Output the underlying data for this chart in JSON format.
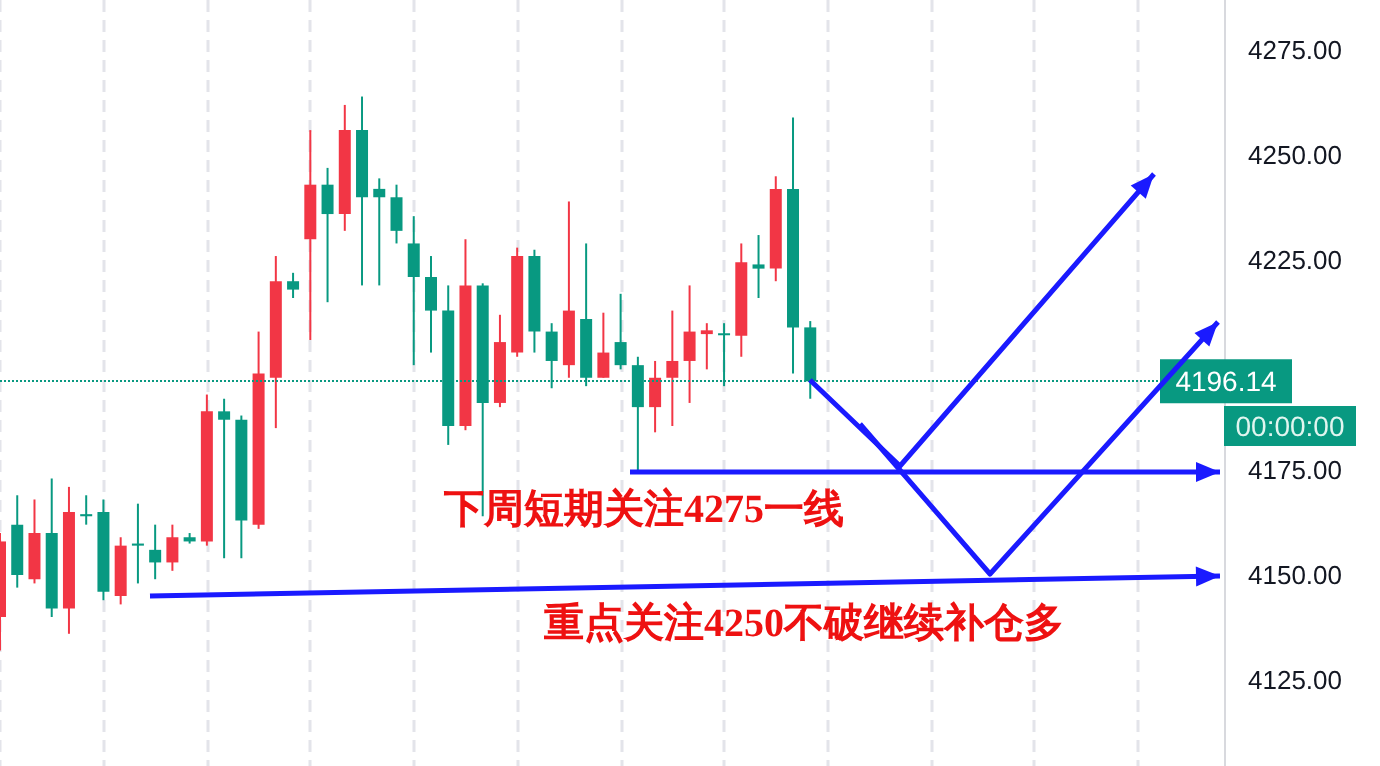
{
  "chart_data": {
    "type": "candlestick",
    "categories": [
      null,
      null,
      null,
      null,
      null,
      null,
      null,
      null,
      null,
      null,
      null,
      null,
      null,
      null,
      null,
      null,
      null,
      null,
      null,
      null,
      null,
      null,
      null,
      null,
      null,
      null,
      null,
      null,
      null,
      null,
      null,
      null,
      null,
      null,
      null,
      null,
      null,
      null,
      null,
      null,
      null,
      null,
      null,
      null,
      null,
      null,
      null,
      null,
      null,
      null,
      null,
      null,
      null,
      null,
      null,
      null,
      null,
      null,
      null,
      null,
      null,
      null,
      null,
      null,
      null,
      null,
      null,
      null,
      null,
      null,
      null,
      null
    ],
    "ohlc": [
      [
        4140,
        4160,
        4132,
        4158
      ],
      [
        4162,
        4169,
        4147,
        4150
      ],
      [
        4149,
        4168,
        4148,
        4160
      ],
      [
        4160,
        4173,
        4140,
        4142
      ],
      [
        4142,
        4171,
        4136,
        4165
      ],
      [
        4164.5,
        4169,
        4162,
        4164
      ],
      [
        4165,
        4168,
        4144,
        4146
      ],
      [
        4145,
        4159,
        4143,
        4157
      ],
      [
        4157.5,
        4167,
        4148,
        4157
      ],
      [
        4156,
        4162,
        4149,
        4153
      ],
      [
        4153,
        4162,
        4151,
        4159
      ],
      [
        4159,
        4160,
        4157.5,
        4158
      ],
      [
        4158,
        4193,
        4157,
        4189
      ],
      [
        4189,
        4192,
        4154,
        4187
      ],
      [
        4187,
        4188,
        4154,
        4163
      ],
      [
        4162,
        4208,
        4161,
        4198
      ],
      [
        4197,
        4226,
        4185,
        4220
      ],
      [
        4220,
        4222,
        4216,
        4218
      ],
      [
        4230,
        4256,
        4206,
        4243
      ],
      [
        4243,
        4247,
        4215,
        4236
      ],
      [
        4236,
        4262,
        4232,
        4256
      ],
      [
        4256,
        4264,
        4219,
        4240
      ],
      [
        4242,
        4244.5,
        4219,
        4240
      ],
      [
        4240,
        4243,
        4229,
        4232
      ],
      [
        4229,
        4235.5,
        4200,
        4221
      ],
      [
        4221,
        4226,
        4203,
        4213
      ],
      [
        4213,
        4219,
        4181,
        4185.5
      ],
      [
        4185.5,
        4230,
        4184.5,
        4219
      ],
      [
        4219,
        4219.5,
        4164,
        4191
      ],
      [
        4191,
        4212,
        4190,
        4205.5
      ],
      [
        4203,
        4228,
        4202,
        4226
      ],
      [
        4226,
        4227.5,
        4203,
        4208
      ],
      [
        4208,
        4210,
        4194.5,
        4201
      ],
      [
        4200,
        4239,
        4197,
        4213
      ],
      [
        4211,
        4229,
        4195,
        4197
      ],
      [
        4197,
        4212.5,
        4197,
        4203
      ],
      [
        4205.5,
        4217,
        4199,
        4200
      ],
      [
        4200,
        4202,
        4174.5,
        4190
      ],
      [
        4190,
        4201,
        4184,
        4197
      ],
      [
        4197,
        4213,
        4185.5,
        4201
      ],
      [
        4201,
        4219,
        4191,
        4208
      ],
      [
        4207.4,
        4210,
        4199,
        4208.3
      ],
      [
        4207.6,
        4210,
        4195,
        4207.2
      ],
      [
        4207,
        4229,
        4202,
        4224.5
      ],
      [
        4224,
        4231,
        4216,
        4223
      ],
      [
        4223,
        4245,
        4220,
        4242
      ],
      [
        4242,
        4259,
        4198,
        4209
      ],
      [
        4209,
        4210.5,
        4192,
        4196.14
      ],
      null,
      null,
      null,
      null,
      null,
      null,
      null,
      null,
      null,
      null,
      null,
      null,
      null,
      null,
      null,
      null,
      null,
      null,
      null,
      null,
      null,
      null,
      null,
      null
    ],
    "colors": [
      "#f23645",
      "#089981",
      "#f23645",
      "#089981",
      "#f23645",
      "#089981",
      "#089981",
      "#f23645",
      "#089981",
      "#089981",
      "#f23645",
      "#089981",
      "#f23645",
      "#089981",
      "#089981",
      "#f23645",
      "#f23645",
      "#089981",
      "#f23645",
      "#089981",
      "#f23645",
      "#089981",
      "#089981",
      "#089981",
      "#089981",
      "#089981",
      "#089981",
      "#f23645",
      "#089981",
      "#f23645",
      "#f23645",
      "#089981",
      "#089981",
      "#f23645",
      "#089981",
      "#f23645",
      "#089981",
      "#089981",
      "#f23645",
      "#f23645",
      "#f23645",
      "#f23645",
      "#089981",
      "#f23645",
      "#089981",
      "#f23645",
      "#089981",
      "#089981",
      null,
      null,
      null,
      null,
      null,
      null,
      null,
      null,
      null,
      null,
      null,
      null,
      null,
      null,
      null,
      null,
      null,
      null,
      null,
      null,
      null,
      null,
      null,
      null
    ],
    "ylim": [
      4104.5,
      4287
    ],
    "yticks": [
      {
        "value": 4125,
        "label": "4125.00"
      },
      {
        "value": 4150,
        "label": "4150.00"
      },
      {
        "value": 4175,
        "label": "4175.00"
      },
      {
        "value": 4225,
        "label": "4225.00"
      },
      {
        "value": 4250,
        "label": "4250.00"
      },
      {
        "value": 4275,
        "label": "4275.00"
      }
    ],
    "tick_labels": "y",
    "grid": "x",
    "ref_lines": [
      {
        "axis": "y",
        "value": 4196.14,
        "label": "4196.14",
        "color": "#089981",
        "line_style": "dotted"
      }
    ],
    "annotations": [
      "下周短期关注4275一线",
      "重点关注4250不破继续补仓多",
      "00:00:00"
    ]
  }
}
